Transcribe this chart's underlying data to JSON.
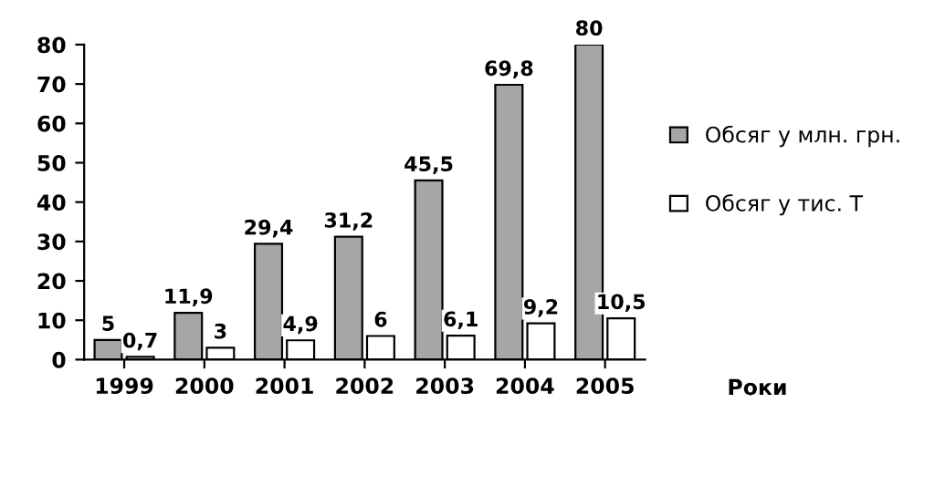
{
  "chart_data": {
    "type": "bar",
    "xlabel": "Роки",
    "categories": [
      "1999",
      "2000",
      "2001",
      "2002",
      "2003",
      "2004",
      "2005"
    ],
    "series": [
      {
        "name": "Обсяг у млн. грн.",
        "color": "#a6a6a6",
        "values": [
          5,
          11.9,
          29.4,
          31.2,
          45.5,
          69.8,
          80
        ],
        "value_labels": [
          "5",
          "11,9",
          "29,4",
          "31,2",
          "45,5",
          "69,8",
          "80"
        ]
      },
      {
        "name": "Обсяг у тис. Т",
        "color": "#ffffff",
        "values": [
          0.7,
          3,
          4.9,
          6,
          6.1,
          9.2,
          10.5
        ],
        "value_labels": [
          "0,7",
          "3",
          "4,9",
          "6",
          "6,1",
          "9,2",
          "10,5"
        ]
      }
    ],
    "ylim": [
      0,
      80
    ],
    "yticks": [
      0,
      10,
      20,
      30,
      40,
      50,
      60,
      70,
      80
    ],
    "grid": false,
    "legend": "right"
  }
}
